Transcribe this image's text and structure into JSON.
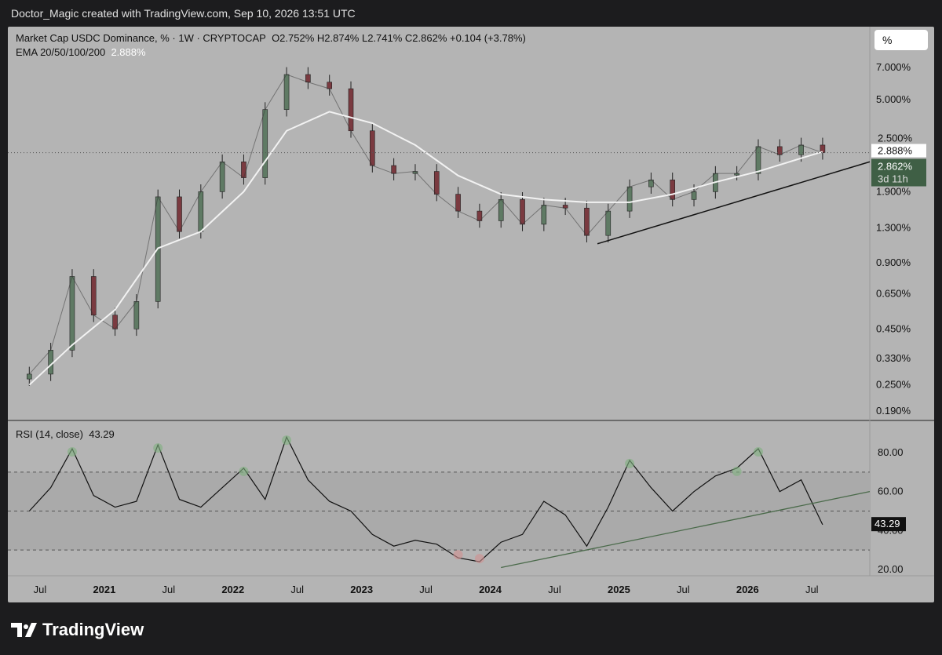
{
  "header": {
    "attribution": "Doctor_Magic created with TradingView.com, Sep 10, 2026 13:51 UTC"
  },
  "legend": {
    "symbol": "Market Cap USDC Dominance, % · 1W · CRYPTOCAP",
    "ohlc": "O2.752%  H2.874%  L2.741%  C2.862%  +0.104 (+3.78%)",
    "ema_label": "EMA 20/50/100/200",
    "ema_value": "2.888%"
  },
  "scale_button": "%",
  "price_labels": {
    "ema": "2.888%",
    "last": "2.862%",
    "countdown": "3d 11h",
    "partial": "2.500%"
  },
  "rsi_legend": {
    "label": "RSI (14, close)",
    "value": "43.29"
  },
  "rsi_price_label": "43.29",
  "footer": {
    "brand": "TradingView"
  },
  "colors": {
    "up": "#5f7a64",
    "down": "#7a3a40",
    "ema": "#f2f2f2",
    "rsi_line": "#111111",
    "rsi_trend": "#4a6a4a",
    "last_label": "#3f5f45"
  },
  "chart_data": [
    {
      "type": "line",
      "title": "Market Cap USDC Dominance, % · 1W · CRYPTOCAP",
      "y_scale": "log",
      "y_ticks": [
        "7.000%",
        "5.000%",
        "2.500%",
        "1.900%",
        "1.300%",
        "0.900%",
        "0.650%",
        "0.450%",
        "0.330%",
        "0.250%",
        "0.190%"
      ],
      "x_ticks": [
        "Jul",
        "2021",
        "Jul",
        "2022",
        "Jul",
        "2023",
        "Jul",
        "2024",
        "Jul",
        "2025",
        "Jul",
        "2026",
        "Jul"
      ],
      "x_ticks_bold": [
        false,
        true,
        false,
        true,
        false,
        true,
        false,
        true,
        false,
        true,
        false,
        true,
        false
      ],
      "series": [
        {
          "name": "Market Cap USDC Dominance",
          "x": [
            "2020-06",
            "2020-08",
            "2020-10",
            "2020-12",
            "2021-02",
            "2021-04",
            "2021-06",
            "2021-08",
            "2021-10",
            "2021-12",
            "2022-02",
            "2022-04",
            "2022-06",
            "2022-08",
            "2022-10",
            "2022-12",
            "2023-02",
            "2023-04",
            "2023-06",
            "2023-08",
            "2023-10",
            "2023-12",
            "2024-02",
            "2024-04",
            "2024-06",
            "2024-08",
            "2024-10",
            "2024-12",
            "2025-02",
            "2025-04",
            "2025-06",
            "2025-08",
            "2025-10",
            "2025-12",
            "2026-02",
            "2026-04",
            "2026-06",
            "2026-08"
          ],
          "values": [
            0.28,
            0.36,
            0.78,
            0.52,
            0.45,
            0.6,
            1.8,
            1.25,
            1.9,
            2.6,
            2.2,
            4.5,
            6.5,
            6.0,
            5.6,
            3.6,
            2.5,
            2.3,
            2.35,
            1.85,
            1.55,
            1.4,
            1.75,
            1.35,
            1.65,
            1.6,
            1.2,
            1.55,
            2.0,
            2.15,
            1.75,
            1.9,
            2.3,
            2.3,
            3.05,
            2.8,
            3.1,
            2.86
          ]
        },
        {
          "name": "EMA",
          "x": [
            "2020-06",
            "2020-10",
            "2021-02",
            "2021-06",
            "2021-10",
            "2022-02",
            "2022-06",
            "2022-10",
            "2023-02",
            "2023-06",
            "2023-10",
            "2024-02",
            "2024-06",
            "2024-10",
            "2025-02",
            "2025-06",
            "2025-10",
            "2026-02",
            "2026-06",
            "2026-08"
          ],
          "values": [
            0.25,
            0.38,
            0.55,
            1.05,
            1.25,
            1.9,
            3.6,
            4.4,
            3.9,
            3.1,
            2.25,
            1.85,
            1.75,
            1.7,
            1.7,
            1.85,
            2.1,
            2.35,
            2.7,
            2.89
          ]
        }
      ]
    },
    {
      "type": "line",
      "title": "RSI (14, close)",
      "y_ticks": [
        "80.00",
        "60.00",
        "40.00",
        "20.00"
      ],
      "ylim": [
        15,
        95
      ],
      "levels": [
        70,
        50,
        30
      ],
      "series": [
        {
          "name": "RSI",
          "x": [
            "2020-06",
            "2020-08",
            "2020-10",
            "2020-12",
            "2021-02",
            "2021-04",
            "2021-06",
            "2021-08",
            "2021-10",
            "2021-12",
            "2022-02",
            "2022-04",
            "2022-06",
            "2022-08",
            "2022-10",
            "2022-12",
            "2023-02",
            "2023-04",
            "2023-06",
            "2023-08",
            "2023-10",
            "2023-12",
            "2024-02",
            "2024-04",
            "2024-06",
            "2024-08",
            "2024-10",
            "2024-12",
            "2025-02",
            "2025-04",
            "2025-06",
            "2025-08",
            "2025-10",
            "2025-12",
            "2026-02",
            "2026-04",
            "2026-06",
            "2026-08"
          ],
          "values": [
            50,
            62,
            82,
            58,
            52,
            55,
            84,
            56,
            52,
            62,
            72,
            56,
            88,
            66,
            55,
            50,
            38,
            32,
            35,
            33,
            26,
            24,
            34,
            38,
            55,
            48,
            32,
            52,
            76,
            62,
            50,
            60,
            68,
            72,
            82,
            60,
            66,
            43
          ]
        }
      ]
    }
  ]
}
